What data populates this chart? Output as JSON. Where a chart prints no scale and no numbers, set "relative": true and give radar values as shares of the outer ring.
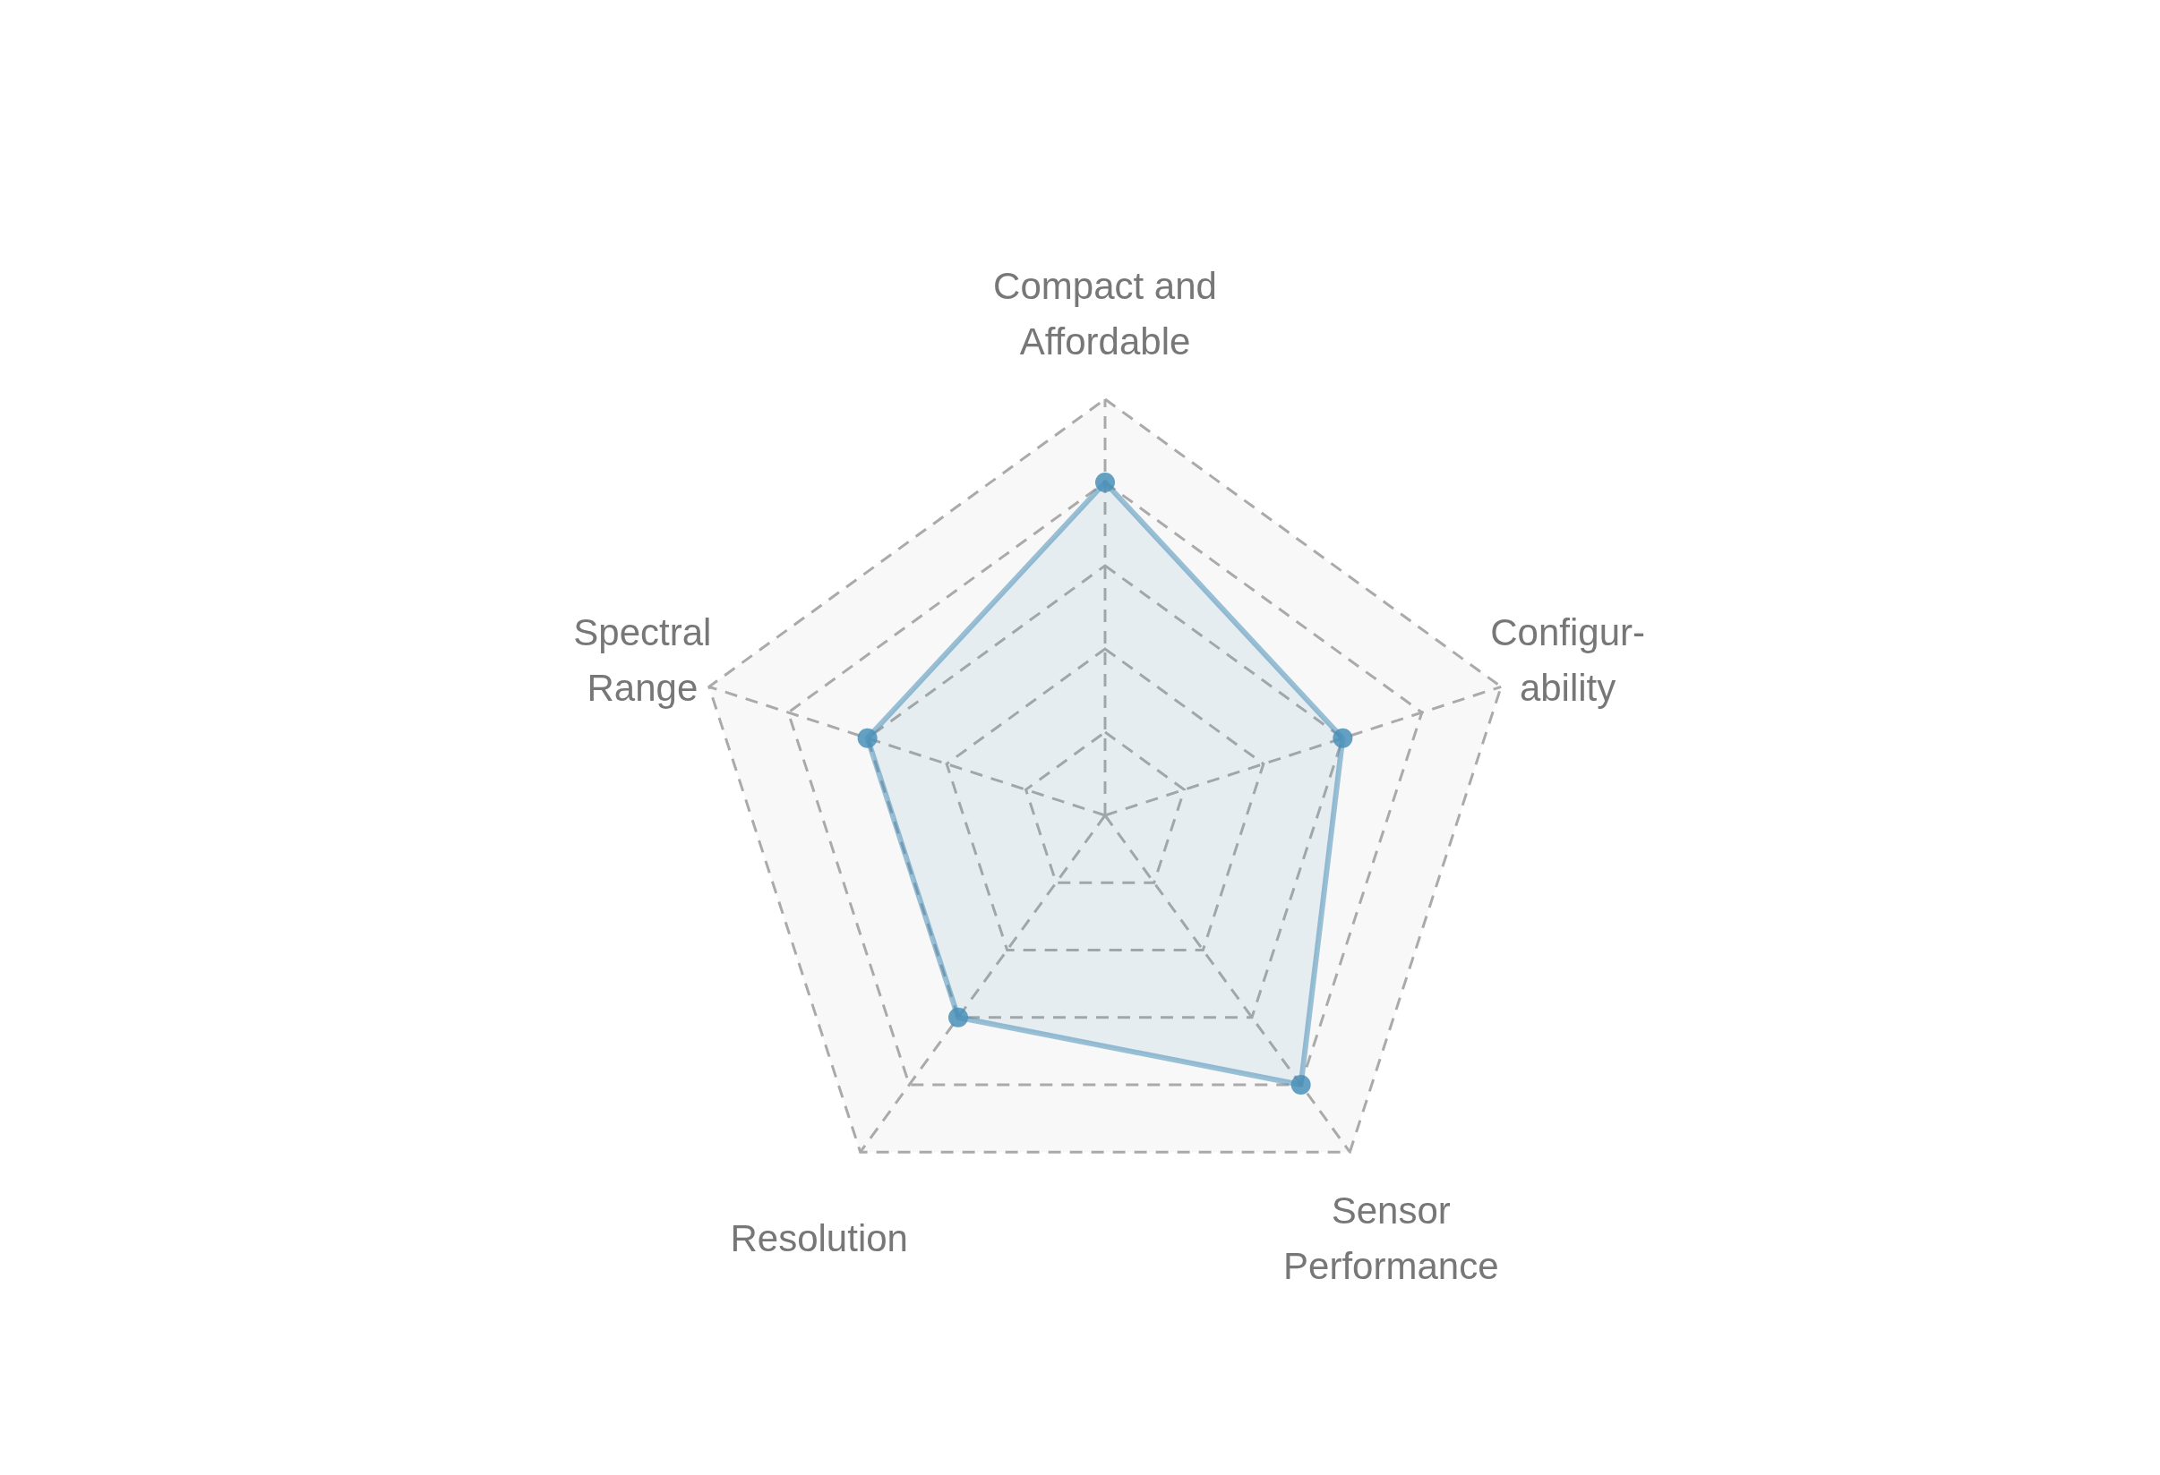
{
  "chart_data": {
    "type": "radar",
    "relative": true,
    "categories": [
      "Compact and\nAffordable",
      "Configur-\nability",
      "Sensor\nPerformance",
      "Resolution",
      "Spectral\nRange"
    ],
    "series": [
      {
        "color": "#4a90b8",
        "values": [
          0.8,
          0.6,
          0.8,
          0.6,
          0.6
        ]
      }
    ],
    "grid": true,
    "marker": "circle"
  }
}
